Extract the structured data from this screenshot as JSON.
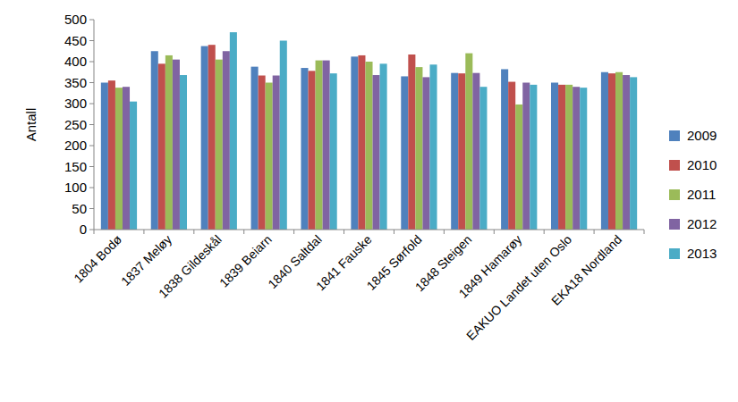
{
  "chart_data": {
    "type": "bar",
    "y_label": "Antall",
    "categories": [
      "1804 Bodø",
      "1837 Meløy",
      "1838 Gildeskål",
      "1839 Beiarn",
      "1840 Saltdal",
      "1841 Fauske",
      "1845 Sørfold",
      "1848 Steigen",
      "1849 Hamarøy",
      "EAKUO Landet uten Oslo",
      "EKA18 Nordland"
    ],
    "series": [
      {
        "name": "2009",
        "color": "#4f81bd",
        "values": [
          350,
          425,
          437,
          388,
          385,
          412,
          365,
          373,
          382,
          350,
          375
        ]
      },
      {
        "name": "2010",
        "color": "#c0504d",
        "values": [
          355,
          395,
          440,
          367,
          378,
          415,
          417,
          372,
          352,
          345,
          372
        ]
      },
      {
        "name": "2011",
        "color": "#9bbb59",
        "values": [
          338,
          415,
          405,
          350,
          403,
          400,
          387,
          420,
          298,
          345,
          375
        ]
      },
      {
        "name": "2012",
        "color": "#8064a2",
        "values": [
          340,
          405,
          425,
          367,
          403,
          368,
          363,
          373,
          350,
          340,
          368
        ]
      },
      {
        "name": "2013",
        "color": "#4bacc6",
        "values": [
          305,
          368,
          470,
          450,
          372,
          395,
          393,
          340,
          345,
          338,
          363
        ]
      }
    ],
    "ylim": [
      0,
      500
    ],
    "yticks": [
      0,
      50,
      100,
      150,
      200,
      250,
      300,
      350,
      400,
      450,
      500
    ],
    "grid": false,
    "legend": "right"
  }
}
